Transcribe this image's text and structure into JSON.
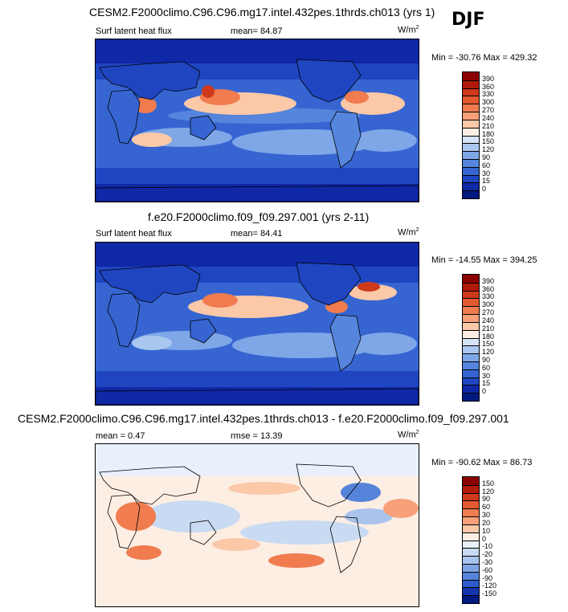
{
  "season": "DJF",
  "panels": [
    {
      "title": "CESM2.F2000climo.C96.C96.mg17.intel.432pes.1thrds.ch013 (yrs 1)",
      "left_label": "Surf latent heat flux",
      "center_label": "mean=  84.87",
      "units_main": "W/m",
      "units_sup": "2",
      "minmax": "Min = -30.76 Max = 429.32",
      "colorbar_levels": [
        "390",
        "360",
        "330",
        "300",
        "270",
        "240",
        "210",
        "180",
        "150",
        "120",
        "90",
        "60",
        "30",
        "15",
        "0"
      ],
      "colorbar_colors": [
        "#8b0000",
        "#b01a0a",
        "#cf3a1c",
        "#e45a30",
        "#f07c50",
        "#f7a07a",
        "#fbc8a8",
        "#fdeee4",
        "#d6e4f7",
        "#aac7ef",
        "#7fa7e8",
        "#5585dd",
        "#3665d2",
        "#1f45c0",
        "#0f28a6",
        "#001a80"
      ]
    },
    {
      "title": "f.e20.F2000climo.f09_f09.297.001 (yrs 2-11)",
      "left_label": "Surf latent heat flux",
      "center_label": "mean=  84.41",
      "units_main": "W/m",
      "units_sup": "2",
      "minmax": "Min = -14.55 Max = 394.25",
      "colorbar_levels": [
        "390",
        "360",
        "330",
        "300",
        "270",
        "240",
        "210",
        "180",
        "150",
        "120",
        "90",
        "60",
        "30",
        "15",
        "0"
      ],
      "colorbar_colors": [
        "#8b0000",
        "#b01a0a",
        "#cf3a1c",
        "#e45a30",
        "#f07c50",
        "#f7a07a",
        "#fbc8a8",
        "#fdeee4",
        "#d6e4f7",
        "#aac7ef",
        "#7fa7e8",
        "#5585dd",
        "#3665d2",
        "#1f45c0",
        "#0f28a6",
        "#001a80"
      ]
    },
    {
      "title": "CESM2.F2000climo.C96.C96.mg17.intel.432pes.1thrds.ch013 - f.e20.F2000climo.f09_f09.297.001",
      "left_label": "mean =   0.47",
      "center_label": "rmse =  13.39",
      "units_main": "W/m",
      "units_sup": "2",
      "minmax": "Min = -90.62 Max =  86.73",
      "colorbar_levels": [
        "150",
        "120",
        "90",
        "60",
        "30",
        "20",
        "10",
        "0",
        "-10",
        "-20",
        "-30",
        "-60",
        "-90",
        "-120",
        "-150"
      ],
      "colorbar_colors": [
        "#8b0000",
        "#b01a0a",
        "#cf3a1c",
        "#e45a30",
        "#f07c50",
        "#f7a07a",
        "#fbc8a8",
        "#fdeee4",
        "#e8f0fb",
        "#c9dbf3",
        "#a9c3ec",
        "#7fa4e4",
        "#5583da",
        "#2f5ccc",
        "#1434b0",
        "#001a80"
      ]
    }
  ]
}
